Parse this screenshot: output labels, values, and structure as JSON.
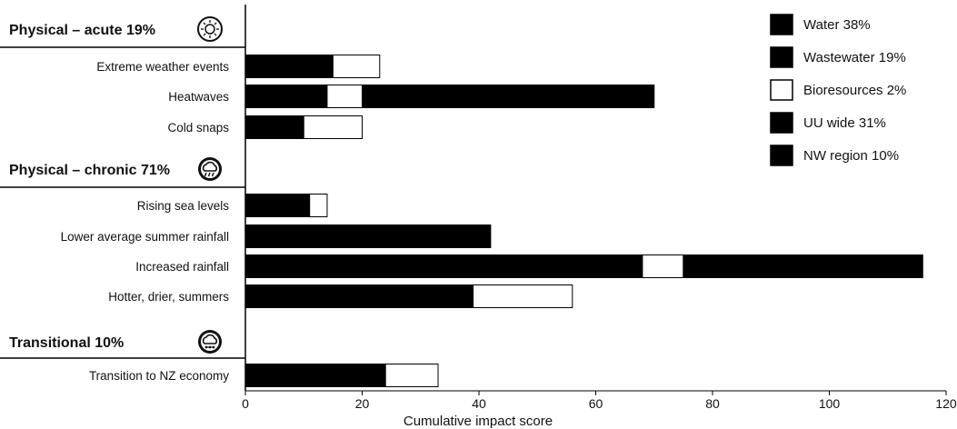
{
  "chart_data": {
    "type": "bar",
    "orientation": "horizontal",
    "stacked": true,
    "xlabel": "Cumulative impact score",
    "xlim": [
      0,
      120
    ],
    "xticks": [
      0,
      20,
      40,
      60,
      80,
      100,
      120
    ],
    "legend_position": "top-right",
    "legend": [
      {
        "label": "Water 38%",
        "color": "#000000"
      },
      {
        "label": "Wastewater 19%",
        "color": "#000000"
      },
      {
        "label": "Bioresources 2%",
        "color": "#ffffff"
      },
      {
        "label": "UU wide 31%",
        "color": "#000000"
      },
      {
        "label": "NW region 10%",
        "color": "#000000"
      }
    ],
    "groups": [
      {
        "label": "Physical – acute 19%",
        "icon": "sun-weather-icon",
        "rows": [
          {
            "label": "Extreme weather events",
            "segments": [
              {
                "color": "#000000",
                "value": 15
              },
              {
                "color": "#ffffff",
                "value": 8
              }
            ]
          },
          {
            "label": "Heatwaves",
            "segments": [
              {
                "color": "#000000",
                "value": 14
              },
              {
                "color": "#ffffff",
                "value": 6
              },
              {
                "color": "#000000",
                "value": 50
              }
            ]
          },
          {
            "label": "Cold snaps",
            "segments": [
              {
                "color": "#000000",
                "value": 10
              },
              {
                "color": "#ffffff",
                "value": 10
              }
            ]
          }
        ]
      },
      {
        "label": "Physical – chronic 71%",
        "icon": "cloud-rain-icon",
        "rows": [
          {
            "label": "Rising sea levels",
            "segments": [
              {
                "color": "#000000",
                "value": 11
              },
              {
                "color": "#ffffff",
                "value": 3
              }
            ]
          },
          {
            "label": "Lower average summer rainfall",
            "segments": [
              {
                "color": "#000000",
                "value": 42
              }
            ]
          },
          {
            "label": "Increased rainfall",
            "segments": [
              {
                "color": "#000000",
                "value": 68
              },
              {
                "color": "#ffffff",
                "value": 7
              },
              {
                "color": "#000000",
                "value": 41
              }
            ]
          },
          {
            "label": "Hotter, drier, summers",
            "segments": [
              {
                "color": "#000000",
                "value": 39
              },
              {
                "color": "#ffffff",
                "value": 17
              }
            ]
          }
        ]
      },
      {
        "label": "Transitional 10%",
        "icon": "cloud-network-icon",
        "rows": [
          {
            "label": "Transition to NZ economy",
            "segments": [
              {
                "color": "#000000",
                "value": 24
              },
              {
                "color": "#ffffff",
                "value": 9
              }
            ]
          }
        ]
      }
    ]
  }
}
